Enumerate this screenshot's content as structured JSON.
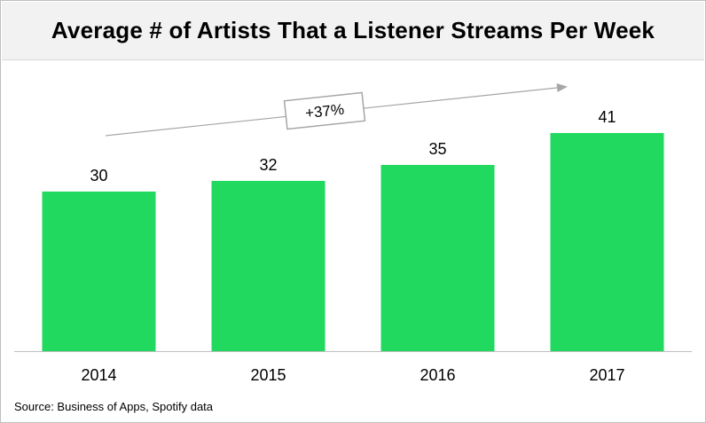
{
  "chart_data": {
    "type": "bar",
    "title": "Average # of Artists That a Listener Streams Per Week",
    "categories": [
      "2014",
      "2015",
      "2016",
      "2017"
    ],
    "values": [
      30,
      32,
      35,
      41
    ],
    "data_labels": [
      "30",
      "32",
      "35",
      "41"
    ],
    "annotation": "+37%",
    "source": "Source: Business of Apps, Spotify data",
    "xlabel": "",
    "ylabel": "",
    "ylim": [
      0,
      41
    ],
    "grid": false,
    "legend": "none",
    "colors": {
      "bar": "#22d95f",
      "axis": "#bfbfbf",
      "arrow": "#a6a6a6",
      "title_bg": "#f2f2f2"
    }
  }
}
